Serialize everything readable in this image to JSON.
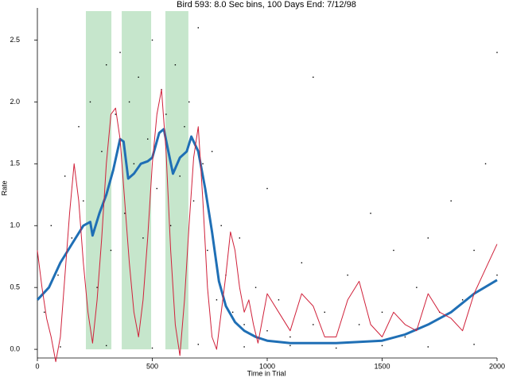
{
  "chart_data": {
    "type": "scatter",
    "title": "Bird 593: 8.0 Sec bins, 100 Days End: 7/12/98",
    "xlabel": "Time in Trial",
    "ylabel": "Rate",
    "xlim": [
      0,
      2000
    ],
    "ylim": [
      -0.07,
      2.76
    ],
    "xticks": [
      0,
      500,
      1000,
      1500,
      2000
    ],
    "yticks": [
      {
        "value": 0,
        "label": "0.0"
      },
      0.5,
      {
        "value": 1,
        "label": "1.0"
      },
      1.5,
      {
        "value": 2,
        "label": "2.0"
      },
      2.5
    ],
    "shaded_regions": {
      "color": "#a8d8b0",
      "ranges": [
        [
          211,
          322
        ],
        [
          367,
          495
        ],
        [
          557,
          657
        ]
      ]
    },
    "series": [
      {
        "type": "scatter",
        "color": "#000000",
        "x": [
          30,
          60,
          90,
          120,
          150,
          180,
          200,
          230,
          260,
          280,
          300,
          320,
          340,
          360,
          380,
          400,
          420,
          440,
          460,
          480,
          500,
          520,
          540,
          560,
          580,
          600,
          620,
          640,
          660,
          680,
          700,
          720,
          740,
          760,
          780,
          800,
          820,
          850,
          880,
          900,
          950,
          1000,
          1050,
          1100,
          1150,
          1200,
          1250,
          1300,
          1350,
          1400,
          1450,
          1500,
          1550,
          1600,
          1650,
          1700,
          1750,
          1800,
          1850,
          1900,
          1950,
          2000,
          100,
          300,
          500,
          700,
          900,
          1100,
          1300,
          1500,
          1700,
          1900,
          2000,
          1200,
          1000
        ],
        "values": [
          0.3,
          1.0,
          0.6,
          1.4,
          0.9,
          1.8,
          1.2,
          2.0,
          0.5,
          1.6,
          2.3,
          0.8,
          1.9,
          2.4,
          1.1,
          2.0,
          1.5,
          2.2,
          0.9,
          1.7,
          2.5,
          1.3,
          2.1,
          1.9,
          1.0,
          2.3,
          1.4,
          1.8,
          2.0,
          1.2,
          2.6,
          1.5,
          0.8,
          1.6,
          0.4,
          1.0,
          0.6,
          0.3,
          0.9,
          0.2,
          0.5,
          0.15,
          0.4,
          0.1,
          0.7,
          0.2,
          0.3,
          0.05,
          0.6,
          0.2,
          1.1,
          0.3,
          0.8,
          0.1,
          0.5,
          0.9,
          0.3,
          1.2,
          0.4,
          0.8,
          1.5,
          0.6,
          0.02,
          0.03,
          0.01,
          0.04,
          0.02,
          0.03,
          0.01,
          0.03,
          0.02,
          0.04,
          2.4,
          2.2,
          1.3
        ]
      },
      {
        "type": "line",
        "color": "#1f6fb5",
        "width": 3,
        "x": [
          0,
          50,
          100,
          150,
          200,
          230,
          240,
          270,
          300,
          330,
          360,
          375,
          395,
          420,
          450,
          480,
          500,
          530,
          550,
          570,
          590,
          620,
          650,
          670,
          700,
          730,
          760,
          790,
          820,
          860,
          900,
          950,
          1000,
          1100,
          1200,
          1300,
          1400,
          1500,
          1600,
          1700,
          1800,
          1900,
          2000
        ],
        "values": [
          0.4,
          0.5,
          0.7,
          0.85,
          1.0,
          1.03,
          0.92,
          1.1,
          1.25,
          1.45,
          1.7,
          1.68,
          1.38,
          1.42,
          1.5,
          1.52,
          1.55,
          1.75,
          1.78,
          1.6,
          1.42,
          1.55,
          1.6,
          1.72,
          1.6,
          1.3,
          0.95,
          0.55,
          0.35,
          0.22,
          0.15,
          0.1,
          0.07,
          0.05,
          0.05,
          0.05,
          0.06,
          0.07,
          0.12,
          0.2,
          0.3,
          0.45,
          0.56
        ]
      },
      {
        "type": "line",
        "color": "#d0213a",
        "width": 1,
        "x": [
          0,
          20,
          40,
          60,
          80,
          100,
          120,
          140,
          160,
          180,
          200,
          220,
          240,
          260,
          280,
          300,
          320,
          340,
          360,
          380,
          400,
          420,
          440,
          460,
          480,
          500,
          520,
          540,
          560,
          580,
          600,
          620,
          640,
          660,
          680,
          700,
          720,
          740,
          760,
          780,
          800,
          820,
          840,
          860,
          880,
          900,
          920,
          940,
          960,
          980,
          1000,
          1050,
          1100,
          1150,
          1200,
          1250,
          1300,
          1350,
          1400,
          1450,
          1500,
          1550,
          1600,
          1650,
          1700,
          1750,
          1800,
          1850,
          1900,
          1950,
          2000
        ],
        "values": [
          0.8,
          0.5,
          0.25,
          0.1,
          -0.1,
          0.1,
          0.6,
          1.1,
          1.5,
          1.2,
          0.7,
          0.3,
          0.05,
          0.4,
          0.9,
          1.5,
          1.9,
          1.95,
          1.7,
          1.2,
          0.7,
          0.3,
          0.1,
          0.4,
          0.9,
          1.5,
          1.9,
          2.1,
          1.6,
          0.8,
          0.2,
          -0.05,
          0.4,
          1.0,
          1.55,
          1.8,
          1.2,
          0.5,
          0.1,
          0.0,
          0.3,
          0.6,
          0.95,
          0.8,
          0.5,
          0.3,
          0.4,
          0.2,
          0.05,
          0.25,
          0.45,
          0.3,
          0.15,
          0.45,
          0.35,
          0.1,
          0.1,
          0.4,
          0.55,
          0.2,
          0.1,
          0.3,
          0.2,
          0.15,
          0.45,
          0.3,
          0.25,
          0.15,
          0.45,
          0.65,
          0.85
        ]
      }
    ]
  }
}
